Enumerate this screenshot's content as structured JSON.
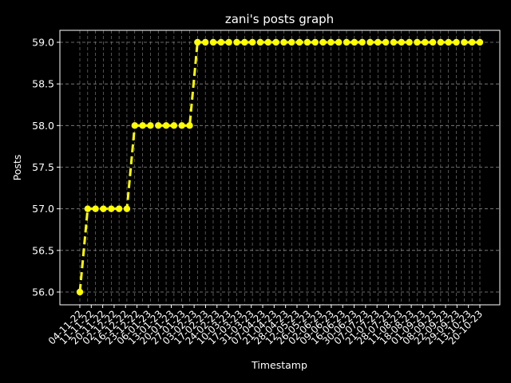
{
  "chart_data": {
    "type": "line",
    "title": "zani's posts graph",
    "xlabel": "Timestamp",
    "ylabel": "Posts",
    "ylim": [
      56.0,
      59.0
    ],
    "yticks": [
      "56.0",
      "56.5",
      "57.0",
      "57.5",
      "58.0",
      "58.5",
      "59.0"
    ],
    "grid": true,
    "line_style": "dashed",
    "colors": {
      "background": "#000000",
      "line": "#ffff00",
      "marker": "#ffff00",
      "grid": "#8a8a8a",
      "text": "#ffffff"
    },
    "x_tick_labels": [
      "04-11-22",
      "11-11-22",
      "20-11-22",
      "02-12-22",
      "16-12-22",
      "23-12-22",
      "06-01-23",
      "13-01-23",
      "20-01-23",
      "27-01-23",
      "03-02-23",
      "17-02-23",
      "24-02-23",
      "10-03-23",
      "17-03-23",
      "31-03-23",
      "07-04-23",
      "21-04-23",
      "28-04-23",
      "12-05-23",
      "26-05-23",
      "02-06-23",
      "09-06-23",
      "16-06-23",
      "30-06-23",
      "07-07-23",
      "21-07-23",
      "28-07-23",
      "11-08-23",
      "18-08-23",
      "01-09-23",
      "08-09-23",
      "22-09-23",
      "29-09-23",
      "13-10-23",
      "20-10-23"
    ],
    "values": [
      56,
      57,
      57,
      57,
      57,
      57,
      57,
      58,
      58,
      58,
      58,
      58,
      58,
      58,
      58,
      59,
      59,
      59,
      59,
      59,
      59,
      59,
      59,
      59,
      59,
      59,
      59,
      59,
      59,
      59,
      59,
      59,
      59,
      59,
      59,
      59,
      59,
      59,
      59,
      59,
      59,
      59,
      59,
      59,
      59,
      59,
      59,
      59,
      59,
      59,
      59,
      59
    ]
  }
}
